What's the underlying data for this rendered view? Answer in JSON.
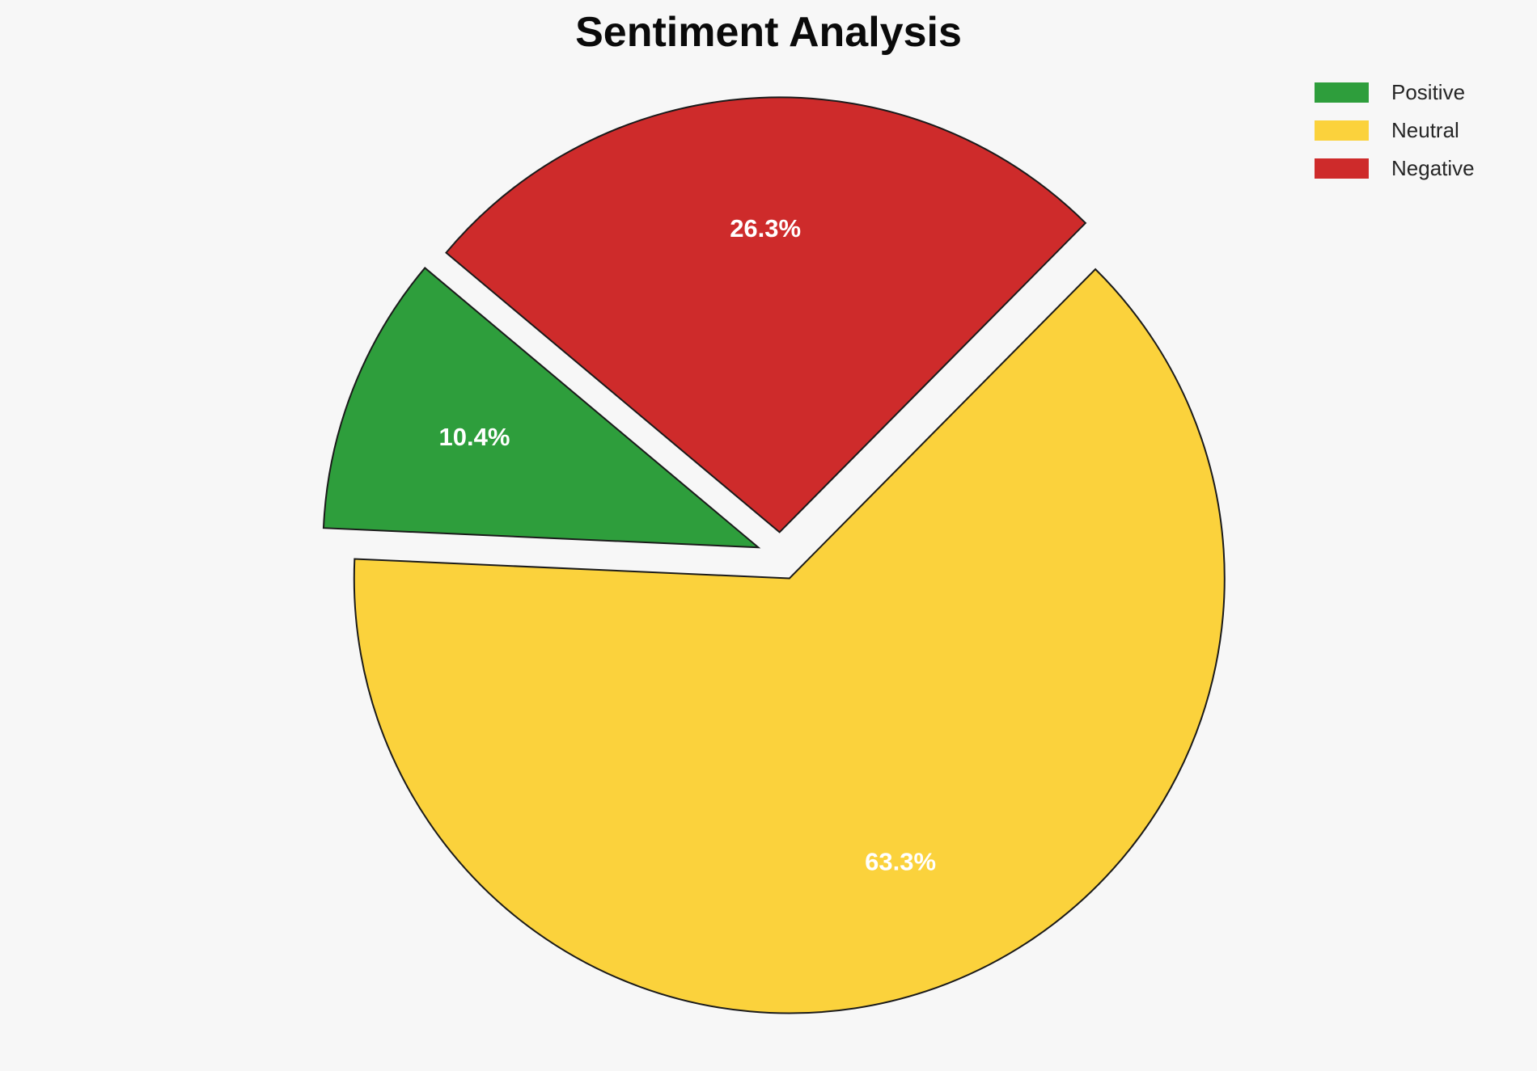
{
  "figure": {
    "title": "Sentiment Analysis",
    "background_color": "#f7f7f7"
  },
  "chart_data": {
    "type": "pie",
    "title": "Sentiment Analysis",
    "categories": [
      "Positive",
      "Neutral",
      "Negative"
    ],
    "values": [
      10.4,
      63.3,
      26.3
    ],
    "value_unit": "percent",
    "slice_labels": [
      "10.4%",
      "63.3%",
      "26.3%"
    ],
    "colors": [
      "#2e9e3c",
      "#fbd23c",
      "#ce2b2b"
    ],
    "startangle": 140,
    "counterclock": true,
    "explode": [
      0.055,
      0.055,
      0.055
    ],
    "pctdistance": 0.7,
    "edge_color": "#1a1a1a",
    "edge_width": 2,
    "pct_label_color": "#ffffff",
    "legend": {
      "position": "upper right",
      "frame": false,
      "entries": [
        {
          "label": "Positive",
          "color": "#2e9e3c"
        },
        {
          "label": "Neutral",
          "color": "#fbd23c"
        },
        {
          "label": "Negative",
          "color": "#ce2b2b"
        }
      ]
    }
  }
}
